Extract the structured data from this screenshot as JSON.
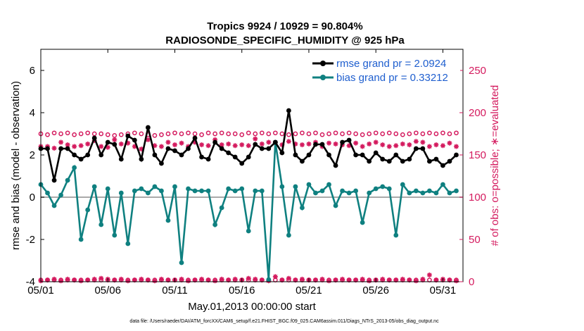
{
  "colors": {
    "rmse": "#000000",
    "bias": "#0f8080",
    "obs": "#d41a5e",
    "legend_text": "#1f5fcf",
    "zero_line": "#aaaaaa"
  },
  "chart_data": {
    "type": "line",
    "title": "Tropics 9924 / 10929 = 90.804%",
    "subtitle": "RADIOSONDE_SPECIFIC_HUMIDITY @ 925 hPa",
    "xlabel": "May.01,2013 00:00:00 start",
    "ylabel_left": "rmse and bias (model - observation)",
    "ylabel_right": "# of obs: o=possible; ∗=evaluated",
    "footer": "data file: /Users/raeder/DAI/ATM_forcXX/CAM6_setup/f.e21.FHIST_BGC.f09_025.CAM6assim.011/Diags_NTrS_2013-05/obs_diag_output.nc",
    "x_tick_labels": [
      "05/01",
      "05/06",
      "05/11",
      "05/16",
      "05/21",
      "05/26",
      "05/31"
    ],
    "x_tick_positions": [
      0,
      5,
      10,
      15,
      20,
      25,
      30
    ],
    "xlim": [
      0,
      31.5
    ],
    "ylim_left": [
      -4,
      7
    ],
    "left_ticks": [
      "-4",
      "-2",
      "0",
      "2",
      "4",
      "6"
    ],
    "left_tick_values": [
      -4,
      -2,
      0,
      2,
      4,
      6
    ],
    "ylim_right": [
      0,
      275
    ],
    "right_ticks": [
      "0",
      "50",
      "100",
      "150",
      "200",
      "250"
    ],
    "right_tick_values": [
      0,
      50,
      100,
      150,
      200,
      250
    ],
    "legend": [
      {
        "label": "rmse grand pr = 2.0924",
        "series": "rmse"
      },
      {
        "label": "bias grand pr = 0.33212",
        "series": "bias"
      }
    ],
    "x": [
      0,
      0.5,
      1,
      1.5,
      2,
      2.5,
      3,
      3.5,
      4,
      4.5,
      5,
      5.5,
      6,
      6.5,
      7,
      7.5,
      8,
      8.5,
      9,
      9.5,
      10,
      10.5,
      11,
      11.5,
      12,
      12.5,
      13,
      13.5,
      14,
      14.5,
      15,
      15.5,
      16,
      16.5,
      17,
      17.5,
      18,
      18.5,
      19,
      19.5,
      20,
      20.5,
      21,
      21.5,
      22,
      22.5,
      23,
      23.5,
      24,
      24.5,
      25,
      25.5,
      26,
      26.5,
      27,
      27.5,
      28,
      28.5,
      29,
      29.5,
      30,
      30.5,
      31
    ],
    "series": [
      {
        "name": "rmse",
        "values": [
          2.3,
          2.3,
          0.8,
          2.3,
          2.3,
          2.0,
          1.8,
          2.0,
          2.8,
          2.0,
          2.6,
          2.5,
          1.8,
          2.9,
          2.7,
          1.8,
          3.3,
          2.0,
          1.6,
          2.3,
          2.2,
          2.0,
          2.3,
          2.8,
          1.9,
          1.8,
          2.6,
          2.3,
          2.1,
          1.9,
          1.6,
          1.9,
          2.5,
          2.3,
          2.3,
          2.6,
          2.1,
          4.1,
          2.0,
          1.7,
          2.0,
          2.5,
          2.5,
          2.0,
          1.5,
          2.6,
          2.7,
          2.0,
          2.0,
          1.7,
          2.1,
          1.8,
          1.7,
          2.0,
          1.7,
          1.8,
          2.3,
          2.3,
          1.7,
          1.8,
          1.5,
          1.7,
          2.0
        ]
      },
      {
        "name": "bias",
        "values": [
          0.6,
          0.2,
          -0.4,
          0.1,
          0.8,
          1.4,
          -2.0,
          -0.6,
          0.5,
          -1.3,
          0.4,
          -1.8,
          0.2,
          -2.2,
          0.3,
          0.4,
          0.2,
          0.5,
          0.3,
          -1.1,
          0.5,
          -3.1,
          0.4,
          0.3,
          0.3,
          0.3,
          -1.3,
          -0.5,
          0.4,
          0.3,
          0.4,
          -1.6,
          0.3,
          0.3,
          -3.9,
          2.6,
          0.5,
          -1.8,
          0.5,
          -0.5,
          0.6,
          0.2,
          0.3,
          0.6,
          -0.4,
          0.3,
          0.2,
          0.3,
          -1.2,
          0.2,
          0.4,
          0.5,
          0.4,
          -1.8,
          0.6,
          0.2,
          0.3,
          0.2,
          0.3,
          0.2,
          0.6,
          0.2,
          0.3
        ]
      },
      {
        "name": "obs_possible",
        "values": [
          175,
          174,
          176,
          175,
          176,
          174,
          175,
          176,
          175,
          175,
          174,
          173,
          174,
          175,
          176,
          175,
          174,
          173,
          174,
          175,
          176,
          175,
          176,
          175,
          174,
          176,
          175,
          176,
          175,
          175,
          174,
          176,
          175,
          176,
          175,
          176,
          175,
          174,
          175,
          176,
          175,
          176,
          174,
          175,
          176,
          175,
          176,
          175,
          174,
          175,
          176,
          175,
          176,
          175,
          174,
          175,
          176,
          175,
          176,
          175,
          176,
          175,
          176
        ]
      },
      {
        "name": "obs_evaluated",
        "values": [
          160,
          160,
          158,
          165,
          162,
          160,
          161,
          163,
          167,
          160,
          159,
          168,
          163,
          164,
          160,
          157,
          168,
          161,
          160,
          165,
          162,
          164,
          160,
          165,
          162,
          161,
          168,
          162,
          163,
          161,
          162,
          161,
          169,
          163,
          165,
          165,
          162,
          166,
          163,
          162,
          163,
          165,
          160,
          164,
          163,
          162,
          161,
          164,
          160,
          163,
          165,
          162,
          160,
          161,
          163,
          162,
          166,
          165,
          160,
          162,
          161,
          164,
          160
        ]
      }
    ],
    "obs_bottom": [
      {
        "name": "obs_bottom_possible",
        "values": [
          2,
          2,
          2,
          2,
          2,
          2,
          2,
          2,
          2,
          2,
          2,
          2,
          2,
          2,
          2,
          2,
          2,
          2,
          2,
          2,
          2,
          2,
          2,
          2,
          2,
          2,
          2,
          2,
          2,
          2,
          2,
          2,
          2,
          2,
          2,
          2,
          2,
          2,
          2,
          2,
          2,
          2,
          2,
          2,
          2,
          2,
          2,
          2,
          2,
          2,
          2,
          2,
          2,
          2,
          2,
          2,
          2,
          2,
          2,
          2,
          2,
          2,
          2
        ]
      },
      {
        "name": "obs_bottom_evaluated",
        "values": [
          1,
          2,
          3,
          1,
          3,
          2,
          1,
          2,
          3,
          4,
          3,
          2,
          3,
          1,
          2,
          3,
          2,
          1,
          3,
          2,
          2,
          3,
          1,
          2,
          3,
          2,
          1,
          3,
          2,
          3,
          2,
          4,
          3,
          2,
          1,
          6,
          2,
          4,
          2,
          3,
          2,
          2,
          3,
          1,
          2,
          3,
          2,
          2,
          3,
          1,
          2,
          3,
          2,
          2,
          3,
          2,
          1,
          3,
          8,
          2,
          3,
          2,
          1
        ]
      }
    ]
  }
}
